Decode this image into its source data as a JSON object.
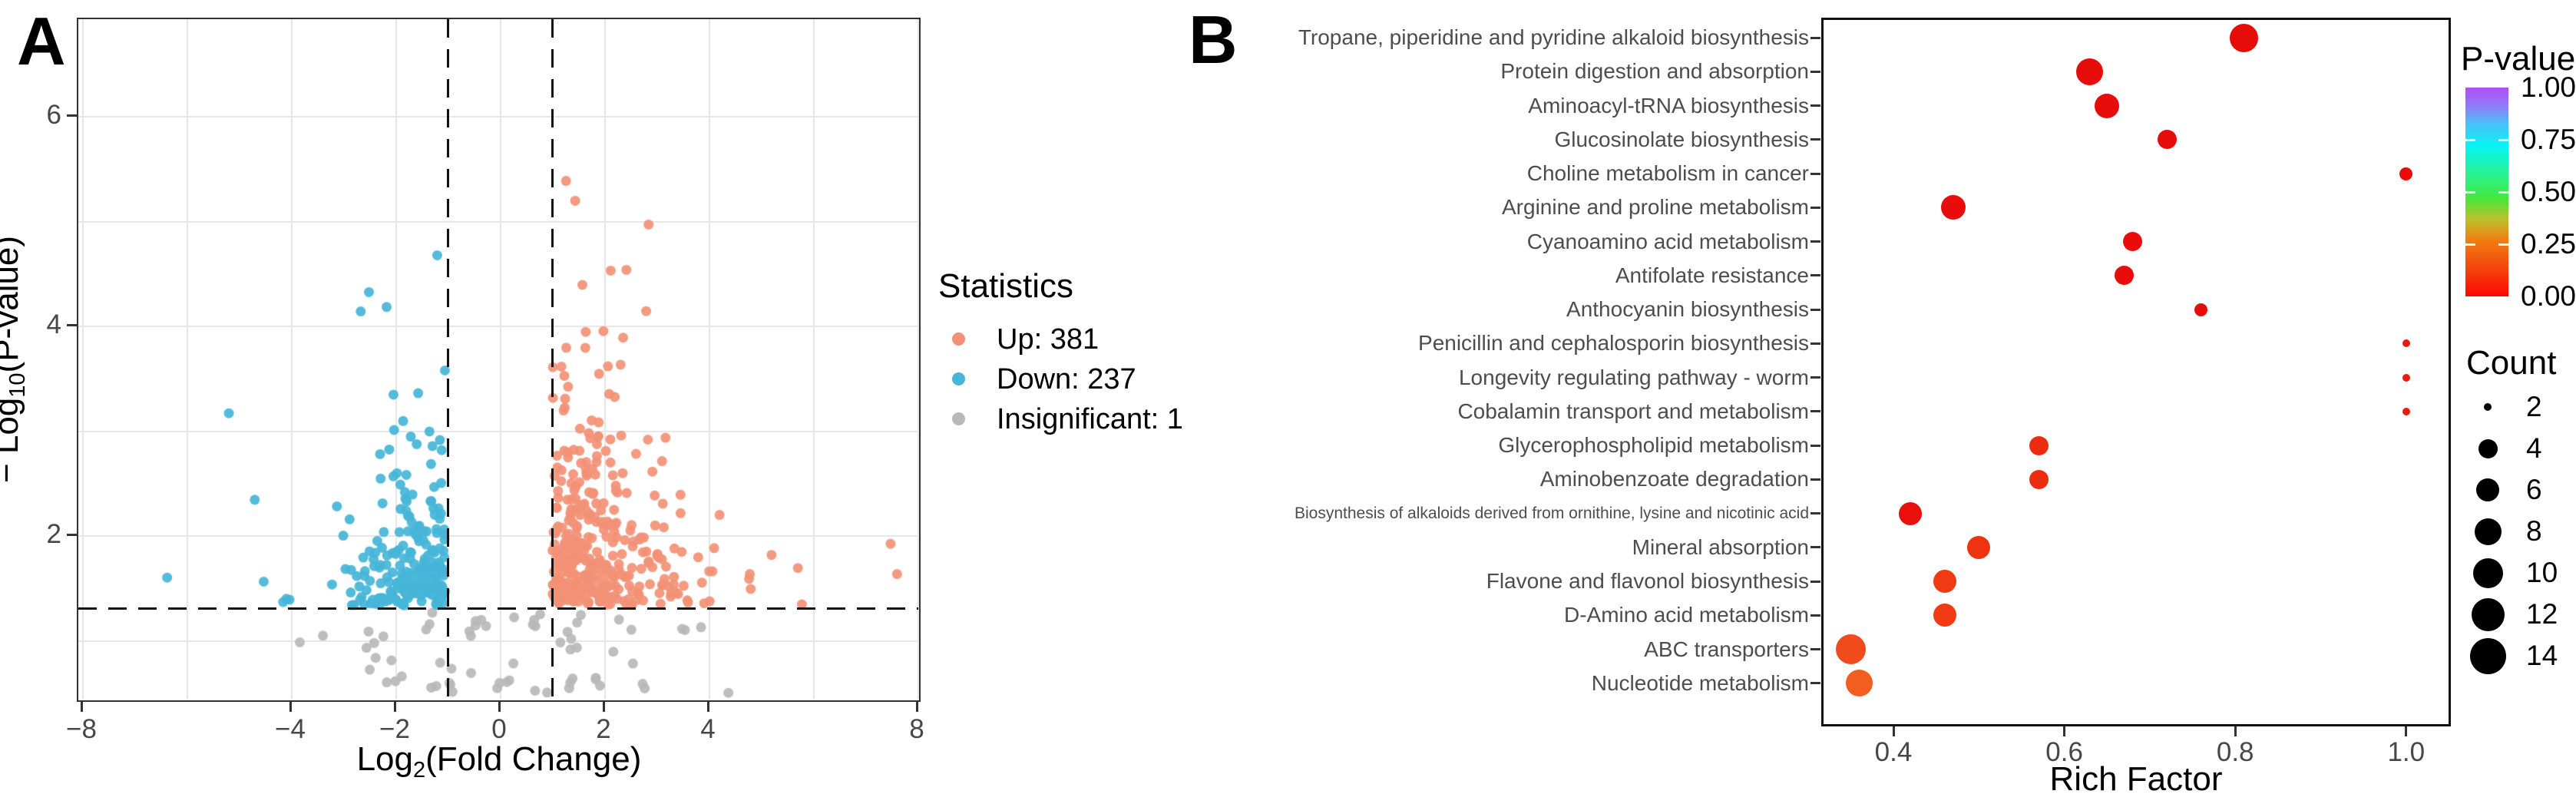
{
  "figure": {
    "panel_a": {
      "letter": "A",
      "x_title_parts": {
        "pre": "Log",
        "sub": "2",
        "post": "(Fold Change)"
      },
      "y_title_parts": {
        "pre": "− Log",
        "sub": "10",
        "post": "(P-value)"
      }
    },
    "panel_b": {
      "letter": "B",
      "x_title": "Rich Factor"
    }
  },
  "chart_data": [
    {
      "type": "scatter",
      "name": "volcano-plot",
      "xlabel": "Log2(Fold Change)",
      "ylabel": "-Log10(P-value)",
      "xlim": [
        -8.1,
        8.1
      ],
      "ylim": [
        0.4,
        6.9
      ],
      "x_ticks": [
        {
          "v": -8,
          "label": "−8"
        },
        {
          "v": -4,
          "label": "−4"
        },
        {
          "v": -2,
          "label": "−2"
        },
        {
          "v": 0,
          "label": "0"
        },
        {
          "v": 2,
          "label": "2"
        },
        {
          "v": 4,
          "label": "4"
        },
        {
          "v": 8,
          "label": "8"
        }
      ],
      "y_ticks": [
        {
          "v": 2,
          "label": "2"
        },
        {
          "v": 4,
          "label": "4"
        },
        {
          "v": 6,
          "label": "6"
        }
      ],
      "grid_x": [
        -8,
        -6,
        -4,
        -2,
        0,
        2,
        4,
        6,
        8
      ],
      "grid_y": [
        1,
        2,
        3,
        4,
        5,
        6
      ],
      "thresholds": {
        "vlines": [
          -1,
          1
        ],
        "hline": 1.301
      },
      "legend_title": "Statistics",
      "series": [
        {
          "name": "Up",
          "label": "Up: 381",
          "n": 381,
          "color": "#F29176"
        },
        {
          "name": "Down",
          "label": "Down: 237",
          "n": 237,
          "color": "#45B5D8"
        },
        {
          "name": "Insignificant",
          "label": "Insignificant: 1",
          "n": 1,
          "color": "#B9B9B9"
        }
      ],
      "render_spec": {
        "seed": 13,
        "gray_points_drawn": 64,
        "point_radius": 6.5
      }
    },
    {
      "type": "bubble",
      "name": "pathway-enrichment",
      "xlabel": "Rich Factor",
      "xlim": [
        0.315,
        1.05
      ],
      "x_ticks": [
        {
          "v": 0.4,
          "label": "0.4"
        },
        {
          "v": 0.6,
          "label": "0.6"
        },
        {
          "v": 0.8,
          "label": "0.8"
        },
        {
          "v": 1.0,
          "label": "1.0"
        }
      ],
      "pathways": [
        {
          "name": "Tropane, piperidine and pyridine alkaloid biosynthesis",
          "rich_factor": 0.81,
          "count": 9,
          "color": "#E60C09"
        },
        {
          "name": "Protein digestion and absorption",
          "rich_factor": 0.63,
          "count": 8,
          "color": "#E60C09"
        },
        {
          "name": "Aminoacyl-tRNA biosynthesis",
          "rich_factor": 0.65,
          "count": 7,
          "color": "#E60C09"
        },
        {
          "name": "Glucosinolate biosynthesis",
          "rich_factor": 0.72,
          "count": 4,
          "color": "#E60C09"
        },
        {
          "name": "Choline metabolism in cancer",
          "rich_factor": 1.0,
          "count": 3,
          "color": "#E60C09"
        },
        {
          "name": "Arginine and proline metabolism",
          "rich_factor": 0.47,
          "count": 7,
          "color": "#E80D0A"
        },
        {
          "name": "Cyanoamino acid metabolism",
          "rich_factor": 0.68,
          "count": 4,
          "color": "#E80D0A"
        },
        {
          "name": "Antifolate resistance",
          "rich_factor": 0.67,
          "count": 4,
          "color": "#E80D0A"
        },
        {
          "name": "Anthocyanin biosynthesis",
          "rich_factor": 0.76,
          "count": 3,
          "color": "#E80D0A"
        },
        {
          "name": "Penicillin and cephalosporin biosynthesis",
          "rich_factor": 1.0,
          "count": 2,
          "color": "#EA1A0C"
        },
        {
          "name": "Longevity regulating pathway - worm",
          "rich_factor": 1.0,
          "count": 2,
          "color": "#EA1A0C"
        },
        {
          "name": "Cobalamin transport and metabolism",
          "rich_factor": 1.0,
          "count": 2,
          "color": "#EA1A0C"
        },
        {
          "name": "Glycerophospholipid metabolism",
          "rich_factor": 0.57,
          "count": 4,
          "color": "#ED2B10"
        },
        {
          "name": "Aminobenzoate degradation",
          "rich_factor": 0.57,
          "count": 4,
          "color": "#ED2B10"
        },
        {
          "name": "Biosynthesis of alkaloids derived from ornithine, lysine and nicotinic acid",
          "rich_factor": 0.42,
          "count": 6,
          "color": "#E9100C"
        },
        {
          "name": "Mineral absorption",
          "rich_factor": 0.5,
          "count": 6,
          "color": "#EE3311"
        },
        {
          "name": "Flavone and flavonol biosynthesis",
          "rich_factor": 0.46,
          "count": 6,
          "color": "#EF3A14"
        },
        {
          "name": "D-Amino acid metabolism",
          "rich_factor": 0.46,
          "count": 6,
          "color": "#EF3A14"
        },
        {
          "name": "ABC transporters",
          "rich_factor": 0.35,
          "count": 10,
          "color": "#F04B1A"
        },
        {
          "name": "Nucleotide metabolism",
          "rich_factor": 0.36,
          "count": 8,
          "color": "#F25E20"
        }
      ],
      "p_legend": {
        "title": "P-value",
        "ticks": [
          "1.00",
          "0.75",
          "0.50",
          "0.25",
          "0.00"
        ],
        "gradient_stops": [
          [
            0,
            "#FB0604"
          ],
          [
            0.14,
            "#F4480C"
          ],
          [
            0.27,
            "#F07E12"
          ],
          [
            0.37,
            "#BCC12B"
          ],
          [
            0.47,
            "#46E83C"
          ],
          [
            0.57,
            "#2BF287"
          ],
          [
            0.72,
            "#06F4F4"
          ],
          [
            0.82,
            "#46C4F8"
          ],
          [
            0.91,
            "#8F7CFA"
          ],
          [
            1,
            "#B34DF5"
          ]
        ]
      },
      "count_legend": {
        "title": "Count",
        "counts": [
          2,
          4,
          6,
          8,
          10,
          12,
          14
        ]
      }
    }
  ]
}
